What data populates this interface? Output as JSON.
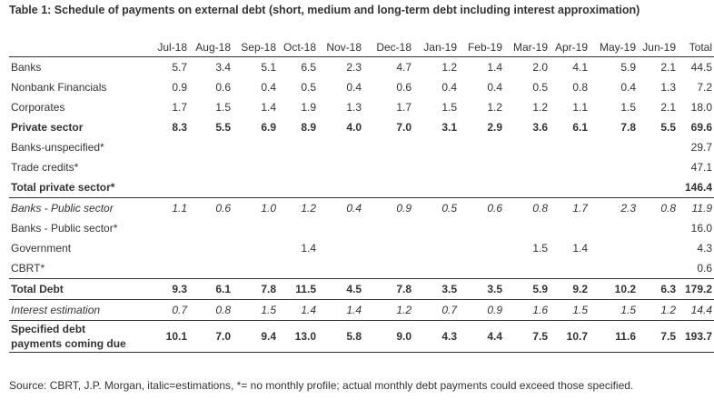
{
  "title": "Table 1: Schedule of payments on external debt (short, medium and long-term debt including interest approximation)",
  "columns": [
    "Jul-18",
    "Aug-18",
    "Sep-18",
    "Oct-18",
    "Nov-18",
    "Dec-18",
    "Jan-19",
    "Feb-19",
    "Mar-19",
    "Apr-19",
    "May-19",
    "Jun-19",
    "Total"
  ],
  "rows": [
    {
      "label": "Banks",
      "values": [
        "5.7",
        "3.4",
        "5.1",
        "6.5",
        "2.3",
        "4.7",
        "1.2",
        "1.4",
        "2.0",
        "4.1",
        "5.9",
        "2.1",
        "44.5"
      ]
    },
    {
      "label": "Nonbank Financials",
      "values": [
        "0.9",
        "0.6",
        "0.4",
        "0.5",
        "0.4",
        "0.6",
        "0.4",
        "0.4",
        "0.5",
        "0.8",
        "0.4",
        "1.3",
        "7.2"
      ]
    },
    {
      "label": "Corporates",
      "values": [
        "1.7",
        "1.5",
        "1.4",
        "1.9",
        "1.3",
        "1.7",
        "1.5",
        "1.2",
        "1.2",
        "1.1",
        "1.5",
        "2.1",
        "18.0"
      ]
    },
    {
      "label": "Private sector",
      "values": [
        "8.3",
        "5.5",
        "6.9",
        "8.9",
        "4.0",
        "7.0",
        "3.1",
        "2.9",
        "3.6",
        "6.1",
        "7.8",
        "5.5",
        "69.6"
      ]
    },
    {
      "label": "Banks-unspecified*",
      "values": [
        "",
        "",
        "",
        "",
        "",
        "",
        "",
        "",
        "",
        "",
        "",
        "",
        "29.7"
      ]
    },
    {
      "label": "Trade credits*",
      "values": [
        "",
        "",
        "",
        "",
        "",
        "",
        "",
        "",
        "",
        "",
        "",
        "",
        "47.1"
      ]
    },
    {
      "label": "Total private sector*",
      "values": [
        "",
        "",
        "",
        "",
        "",
        "",
        "",
        "",
        "",
        "",
        "",
        "",
        "146.4"
      ]
    },
    {
      "label": "Banks - Public sector",
      "values": [
        "1.1",
        "0.6",
        "1.0",
        "1.2",
        "0.4",
        "0.9",
        "0.5",
        "0.6",
        "0.8",
        "1.7",
        "2.3",
        "0.8",
        "11.9"
      ]
    },
    {
      "label": "Banks - Public sector*",
      "values": [
        "",
        "",
        "",
        "",
        "",
        "",
        "",
        "",
        "",
        "",
        "",
        "",
        "16.0"
      ]
    },
    {
      "label": "Government",
      "values": [
        "",
        "",
        "",
        "1.4",
        "",
        "",
        "",
        "",
        "1.5",
        "1.4",
        "",
        "",
        "4.3"
      ]
    },
    {
      "label": "CBRT*",
      "values": [
        "",
        "",
        "",
        "",
        "",
        "",
        "",
        "",
        "",
        "",
        "",
        "",
        "0.6"
      ]
    },
    {
      "label": "Total Debt",
      "values": [
        "9.3",
        "6.1",
        "7.8",
        "11.5",
        "4.5",
        "7.8",
        "3.5",
        "3.5",
        "5.9",
        "9.2",
        "10.2",
        "6.3",
        "179.2"
      ]
    },
    {
      "label": "Interest estimation",
      "values": [
        "0.7",
        "0.8",
        "1.5",
        "1.4",
        "1.4",
        "1.2",
        "0.7",
        "0.9",
        "1.6",
        "1.5",
        "1.5",
        "1.2",
        "14.4"
      ]
    },
    {
      "label": "Specified debt payments coming due",
      "values": [
        "10.1",
        "7.0",
        "9.4",
        "13.0",
        "5.8",
        "9.0",
        "4.3",
        "4.4",
        "7.5",
        "10.7",
        "11.6",
        "7.5",
        "193.7"
      ]
    }
  ],
  "source": "Source: CBRT, J.P. Morgan, italic=estimations, *= no monthly profile; actual monthly debt payments could exceed those specified."
}
